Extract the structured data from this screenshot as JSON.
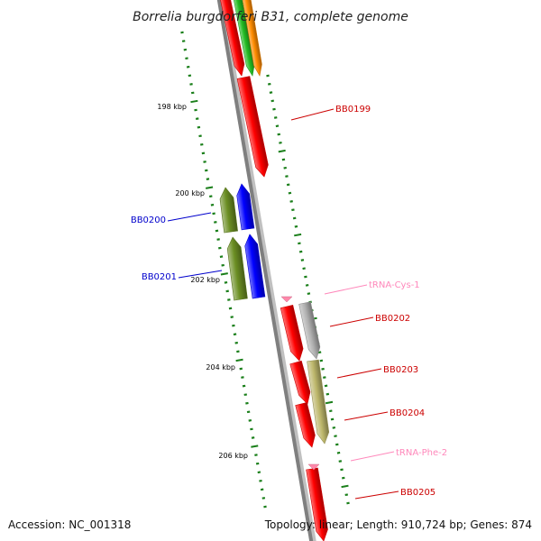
{
  "title": "Borrelia burgdorferi B31, complete genome",
  "footer": {
    "accession": "Accession: NC_001318",
    "summary": "Topology: linear; Length: 910,724 bp; Genes: 874"
  },
  "scale_labels": [
    "198 kbp",
    "200 kbp",
    "202 kbp",
    "204 kbp",
    "206 kbp"
  ],
  "colors": {
    "backbone": "#7f7f7f",
    "backbone_shadow": "#c0c0c0",
    "tick": "#1a7f1a",
    "gene_red": "#ff0000",
    "gene_blue": "#0000ff",
    "gene_olive": "#6b8e23",
    "gene_khaki": "#bdb76b",
    "gene_gray": "#b0b0b0",
    "gene_green": "#22bb22",
    "gene_orange": "#ff8c00",
    "trna_pink": "#ff88aa",
    "label_red": "#cc0000",
    "label_blue": "#0000cc",
    "label_pink": "#ff88bb"
  },
  "gene_labels": [
    {
      "text": "BB0199",
      "color": "label_red"
    },
    {
      "text": "BB0200",
      "color": "label_blue"
    },
    {
      "text": "BB0201",
      "color": "label_blue"
    },
    {
      "text": "tRNA-Cys-1",
      "color": "label_pink"
    },
    {
      "text": "BB0202",
      "color": "label_red"
    },
    {
      "text": "BB0203",
      "color": "label_red"
    },
    {
      "text": "BB0204",
      "color": "label_red"
    },
    {
      "text": "tRNA-Phe-2",
      "color": "label_pink"
    },
    {
      "text": "BB0205",
      "color": "label_red"
    }
  ],
  "features": [
    {
      "name": "gene-top-a",
      "color": "gene_red",
      "dir": "down"
    },
    {
      "name": "gene-top-b",
      "color": "gene_green",
      "dir": "down"
    },
    {
      "name": "gene-top-c",
      "color": "gene_orange",
      "dir": "down"
    },
    {
      "name": "gene-bb0199",
      "color": "gene_red",
      "dir": "down"
    },
    {
      "name": "gene-bb0200-olive",
      "color": "gene_olive",
      "dir": "up"
    },
    {
      "name": "gene-bb0200-blue",
      "color": "gene_blue",
      "dir": "up"
    },
    {
      "name": "gene-bb0201-olive",
      "color": "gene_olive",
      "dir": "up"
    },
    {
      "name": "gene-bb0201-blue",
      "color": "gene_blue",
      "dir": "up"
    },
    {
      "name": "gene-bb0202",
      "color": "gene_red",
      "dir": "down"
    },
    {
      "name": "gene-bb0202-gray",
      "color": "gene_gray",
      "dir": "down"
    },
    {
      "name": "gene-bb0203",
      "color": "gene_red",
      "dir": "down"
    },
    {
      "name": "gene-bb0203-khaki",
      "color": "gene_khaki",
      "dir": "down"
    },
    {
      "name": "gene-bb0204",
      "color": "gene_red",
      "dir": "down"
    },
    {
      "name": "gene-bb0205",
      "color": "gene_red",
      "dir": "down"
    },
    {
      "name": "trna-cys-1",
      "color": "trna_pink",
      "dir": "down"
    },
    {
      "name": "trna-phe-2",
      "color": "trna_pink",
      "dir": "down"
    }
  ]
}
